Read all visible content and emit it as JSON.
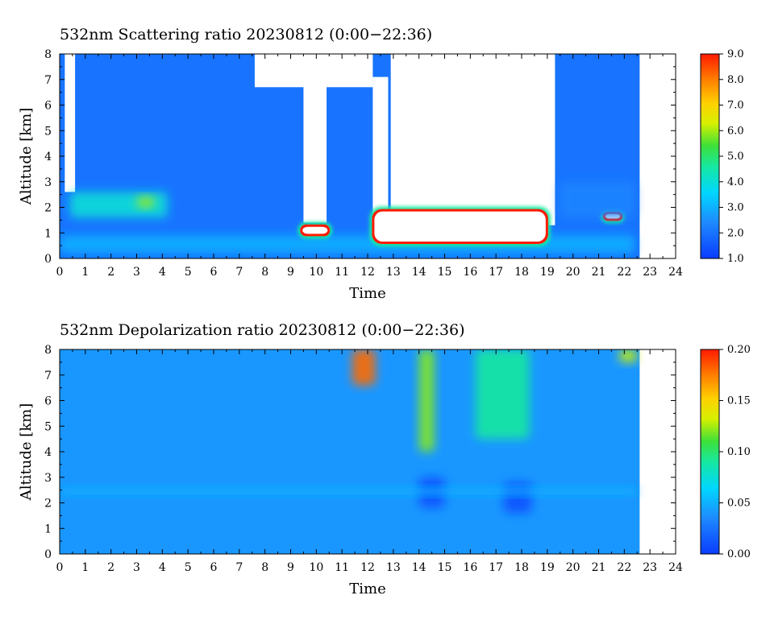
{
  "chart_data": [
    {
      "type": "heatmap",
      "title": "532nm Scattering ratio  20230812 (0:00−22:36)",
      "xlabel": "Time",
      "ylabel": "Altitude [km]",
      "xlim": [
        0,
        24
      ],
      "ylim": [
        0,
        8
      ],
      "xticks": [
        "0",
        "1",
        "2",
        "3",
        "4",
        "5",
        "6",
        "7",
        "8",
        "9",
        "10",
        "11",
        "12",
        "13",
        "14",
        "15",
        "16",
        "17",
        "18",
        "19",
        "20",
        "21",
        "22",
        "23",
        "24"
      ],
      "yticks": [
        "0",
        "1",
        "2",
        "3",
        "4",
        "5",
        "6",
        "7",
        "8"
      ],
      "data_end_time": 22.6,
      "colorbar": {
        "min": 1.0,
        "max": 9.0,
        "ticks": [
          "1.0",
          "2.0",
          "3.0",
          "4.0",
          "5.0",
          "6.0",
          "7.0",
          "8.0",
          "9.0"
        ]
      },
      "background_level": 2.0,
      "features": [
        {
          "kind": "no-data",
          "t": [
            0.2,
            0.6
          ],
          "alt": [
            2.6,
            8.0
          ]
        },
        {
          "kind": "no-data",
          "t": [
            9.5,
            10.4
          ],
          "alt": [
            1.4,
            7.1
          ]
        },
        {
          "kind": "no-data",
          "t": [
            12.2,
            12.8
          ],
          "alt": [
            1.5,
            7.1
          ]
        },
        {
          "kind": "no-data",
          "t": [
            12.9,
            19.3
          ],
          "alt": [
            1.3,
            8.0
          ]
        },
        {
          "kind": "no-data",
          "t": [
            7.6,
            12.2
          ],
          "alt": [
            6.7,
            8.0
          ]
        },
        {
          "kind": "layer",
          "t": [
            0.4,
            4.2
          ],
          "alt": [
            1.6,
            2.6
          ],
          "value": 4.0
        },
        {
          "kind": "layer",
          "t": [
            3.0,
            3.7
          ],
          "alt": [
            2.0,
            2.4
          ],
          "value": 6.0
        },
        {
          "kind": "layer",
          "t": [
            0.0,
            22.4
          ],
          "alt": [
            0.2,
            0.9
          ],
          "value": 3.0
        },
        {
          "kind": "cloud",
          "t": [
            12.2,
            19.0
          ],
          "alt": [
            0.6,
            1.9
          ],
          "value": 9.0
        },
        {
          "kind": "cloud",
          "t": [
            9.4,
            10.5
          ],
          "alt": [
            0.9,
            1.3
          ],
          "value": 9.0
        },
        {
          "kind": "cloud",
          "t": [
            21.2,
            21.9
          ],
          "alt": [
            1.5,
            1.8
          ],
          "value": 9.0
        },
        {
          "kind": "band",
          "t": [
            19.5,
            22.4
          ],
          "alt": [
            1.6,
            3.0
          ],
          "value": 2.3
        }
      ]
    },
    {
      "type": "heatmap",
      "title": "532nm Depolarization ratio  20230812 (0:00−22:36)",
      "xlabel": "Time",
      "ylabel": "Altitude [km]",
      "xlim": [
        0,
        24
      ],
      "ylim": [
        0,
        8
      ],
      "xticks": [
        "0",
        "1",
        "2",
        "3",
        "4",
        "5",
        "6",
        "7",
        "8",
        "9",
        "10",
        "11",
        "12",
        "13",
        "14",
        "15",
        "16",
        "17",
        "18",
        "19",
        "20",
        "21",
        "22",
        "23",
        "24"
      ],
      "yticks": [
        "0",
        "1",
        "2",
        "3",
        "4",
        "5",
        "6",
        "7",
        "8"
      ],
      "data_end_time": 22.6,
      "colorbar": {
        "min": 0.0,
        "max": 0.2,
        "ticks": [
          "0.00",
          "0.05",
          "0.10",
          "0.15",
          "0.20"
        ]
      },
      "background_level": 0.04,
      "features": [
        {
          "kind": "high",
          "t": [
            11.4,
            12.3
          ],
          "alt": [
            6.6,
            8.0
          ],
          "value": 0.18
        },
        {
          "kind": "high",
          "t": [
            14.0,
            14.6
          ],
          "alt": [
            4.0,
            8.0
          ],
          "value": 0.12
        },
        {
          "kind": "high",
          "t": [
            16.2,
            18.3
          ],
          "alt": [
            4.5,
            8.0
          ],
          "value": 0.09
        },
        {
          "kind": "high",
          "t": [
            21.8,
            22.5
          ],
          "alt": [
            7.5,
            8.0
          ],
          "value": 0.13
        },
        {
          "kind": "low",
          "t": [
            14.0,
            15.0
          ],
          "alt": [
            1.8,
            3.0
          ],
          "value": 0.01
        },
        {
          "kind": "low",
          "t": [
            17.3,
            18.4
          ],
          "alt": [
            1.6,
            2.8
          ],
          "value": 0.01
        },
        {
          "kind": "layer",
          "t": [
            0.0,
            22.5
          ],
          "alt": [
            2.3,
            2.6
          ],
          "value": 0.05
        }
      ]
    }
  ]
}
